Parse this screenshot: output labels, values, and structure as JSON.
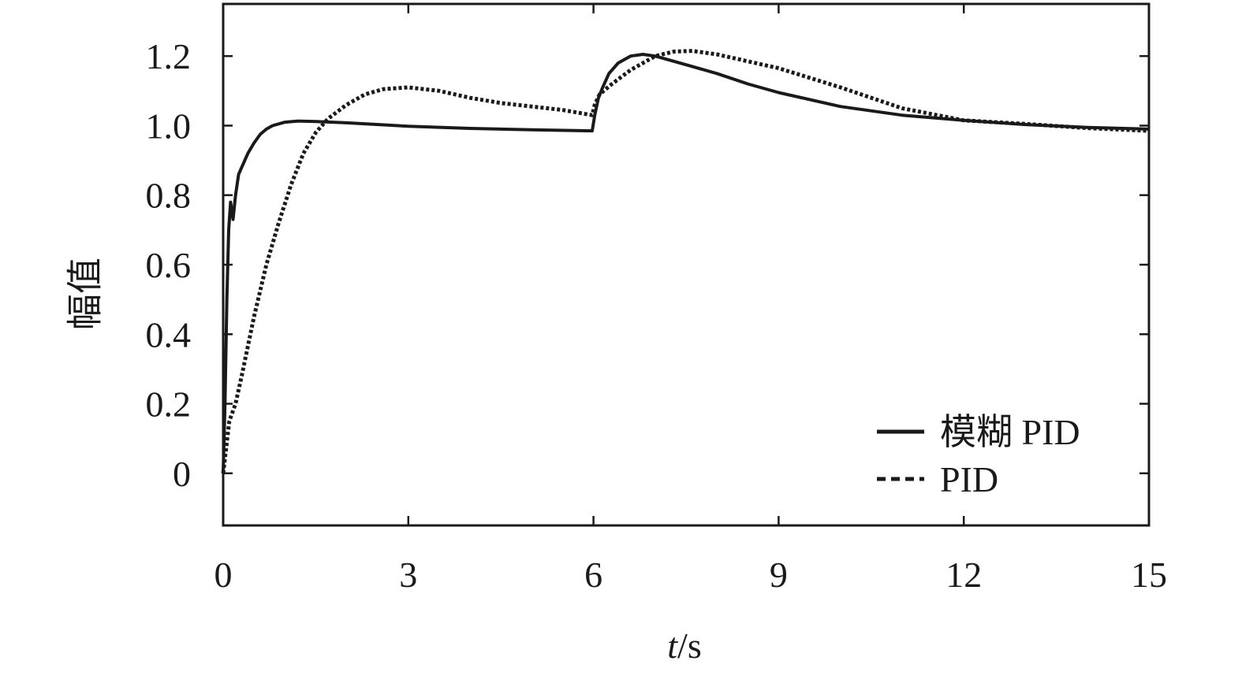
{
  "chart_data": {
    "type": "line",
    "title": "",
    "xlabel": "t/s",
    "xlabel_italic": "t",
    "xlabel_rest": "/s",
    "ylabel": "幅值",
    "xlim": [
      0,
      15
    ],
    "ylim": [
      -0.15,
      1.35
    ],
    "xticks": [
      0,
      3,
      6,
      9,
      12,
      15
    ],
    "xtick_labels": [
      "0",
      "3",
      "6",
      "9",
      "12",
      "15"
    ],
    "yticks": [
      0,
      0.2,
      0.4,
      0.6,
      0.8,
      1.0,
      1.2
    ],
    "ytick_labels": [
      "0",
      "0.2",
      "0.4",
      "0.6",
      "0.8",
      "1.0",
      "1.2"
    ],
    "grid": false,
    "legend_position": "bottom-right",
    "colors": {
      "line": "#1a1a1a",
      "axis": "#1a1a1a"
    },
    "series": [
      {
        "name": "模糊 PID",
        "style": "solid",
        "points": [
          [
            0,
            0
          ],
          [
            0.03,
            0.2
          ],
          [
            0.06,
            0.5
          ],
          [
            0.09,
            0.7
          ],
          [
            0.12,
            0.78
          ],
          [
            0.16,
            0.73
          ],
          [
            0.2,
            0.8
          ],
          [
            0.25,
            0.86
          ],
          [
            0.3,
            0.88
          ],
          [
            0.4,
            0.92
          ],
          [
            0.5,
            0.95
          ],
          [
            0.6,
            0.975
          ],
          [
            0.7,
            0.99
          ],
          [
            0.8,
            1.0
          ],
          [
            1.0,
            1.01
          ],
          [
            1.2,
            1.013
          ],
          [
            1.5,
            1.012
          ],
          [
            2.0,
            1.008
          ],
          [
            3.0,
            0.998
          ],
          [
            4.0,
            0.992
          ],
          [
            5.0,
            0.988
          ],
          [
            5.98,
            0.985
          ],
          [
            6.02,
            1.03
          ],
          [
            6.08,
            1.08
          ],
          [
            6.15,
            1.11
          ],
          [
            6.25,
            1.15
          ],
          [
            6.4,
            1.18
          ],
          [
            6.6,
            1.2
          ],
          [
            6.8,
            1.205
          ],
          [
            7.0,
            1.2
          ],
          [
            7.5,
            1.175
          ],
          [
            8.0,
            1.15
          ],
          [
            8.5,
            1.12
          ],
          [
            9.0,
            1.095
          ],
          [
            10.0,
            1.055
          ],
          [
            11.0,
            1.03
          ],
          [
            12.0,
            1.015
          ],
          [
            13.0,
            1.003
          ],
          [
            14.0,
            0.995
          ],
          [
            15.0,
            0.99
          ]
        ]
      },
      {
        "name": "PID",
        "style": "dashed",
        "points": [
          [
            0,
            0
          ],
          [
            0.1,
            0.15
          ],
          [
            0.2,
            0.2
          ],
          [
            0.3,
            0.28
          ],
          [
            0.5,
            0.45
          ],
          [
            0.7,
            0.6
          ],
          [
            0.9,
            0.72
          ],
          [
            1.1,
            0.83
          ],
          [
            1.3,
            0.92
          ],
          [
            1.5,
            0.98
          ],
          [
            1.7,
            1.02
          ],
          [
            2.0,
            1.06
          ],
          [
            2.3,
            1.09
          ],
          [
            2.6,
            1.105
          ],
          [
            3.0,
            1.11
          ],
          [
            3.5,
            1.1
          ],
          [
            4.0,
            1.08
          ],
          [
            4.5,
            1.065
          ],
          [
            5.0,
            1.055
          ],
          [
            5.5,
            1.045
          ],
          [
            5.98,
            1.03
          ],
          [
            6.02,
            1.06
          ],
          [
            6.1,
            1.09
          ],
          [
            6.3,
            1.12
          ],
          [
            6.6,
            1.16
          ],
          [
            7.0,
            1.2
          ],
          [
            7.3,
            1.213
          ],
          [
            7.6,
            1.215
          ],
          [
            8.0,
            1.205
          ],
          [
            9.0,
            1.165
          ],
          [
            10.0,
            1.11
          ],
          [
            11.0,
            1.05
          ],
          [
            12.0,
            1.015
          ],
          [
            13.0,
            1.005
          ],
          [
            14.0,
            0.993
          ],
          [
            15.0,
            0.985
          ]
        ]
      }
    ]
  }
}
